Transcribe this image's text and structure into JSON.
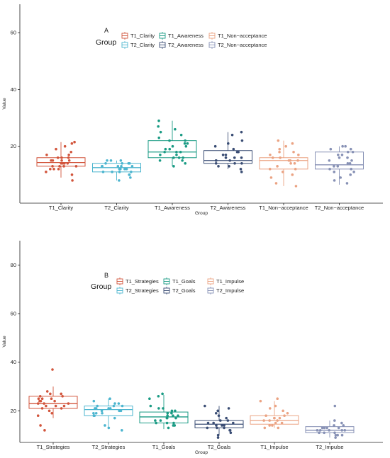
{
  "colors": {
    "T1_Clarity": "#d2553c",
    "T2_Clarity": "#4cb5cf",
    "T1_Awareness": "#1a9b84",
    "T2_Awareness": "#3a4d74",
    "T1_Non-acceptance": "#eba383",
    "T2_Non-acceptance": "#8791b5",
    "T1_Strategies": "#d2553c",
    "T2_Strategies": "#4cb5cf",
    "T1_Goals": "#1a9b84",
    "T2_Goals": "#3a4d74",
    "T1_Impulse": "#eba383",
    "T2_Impulse": "#8791b5"
  },
  "chart_data": [
    {
      "type": "box",
      "panel_label": "A",
      "xlabel": "Group",
      "ylabel": "Value",
      "ylim": [
        0,
        70
      ],
      "yticks": [
        20,
        40,
        60
      ],
      "grid": false,
      "legend": {
        "title": "Group",
        "placement": "top-left-inside",
        "entries": [
          "T1_Clarity",
          "T1_Awareness",
          "T1_Non−acceptance",
          "T2_Clarity",
          "T2_Awareness",
          "T2_Non−acceptance"
        ]
      },
      "categories": [
        "T1_Clarity",
        "T2_Clarity",
        "T1_Awareness",
        "T2_Awareness",
        "T1_Non−acceptance",
        "T2_Non−acceptance"
      ],
      "color_keys": [
        "T1_Clarity",
        "T2_Clarity",
        "T1_Awareness",
        "T2_Awareness",
        "T1_Non-acceptance",
        "T2_Non-acceptance"
      ],
      "boxes": [
        {
          "whisker_low": 9,
          "q1": 13,
          "median": 14.3,
          "q3": 16,
          "whisker_high": 21.5
        },
        {
          "whisker_low": 8,
          "q1": 11,
          "median": 12.5,
          "q3": 14,
          "whisker_high": 15
        },
        {
          "whisker_low": 13,
          "q1": 16,
          "median": 18,
          "q3": 22,
          "whisker_high": 29
        },
        {
          "whisker_low": 12,
          "q1": 14,
          "median": 15,
          "q3": 18.5,
          "whisker_high": 25
        },
        {
          "whisker_low": 6,
          "q1": 12,
          "median": 15,
          "q3": 16,
          "whisker_high": 22
        },
        {
          "whisker_low": 6.5,
          "q1": 12,
          "median": 13.5,
          "q3": 18,
          "whisker_high": 20
        }
      ],
      "points": [
        [
          15,
          16,
          14,
          13,
          12,
          18,
          17,
          14,
          15,
          16,
          11,
          13,
          14,
          16,
          21,
          19,
          12,
          15,
          13,
          14,
          8,
          10,
          17,
          20,
          21.5,
          13,
          15,
          12
        ],
        [
          12,
          13,
          11,
          14,
          15,
          10,
          13,
          12,
          11,
          14,
          9,
          8,
          13,
          15,
          12,
          11,
          14,
          13,
          12,
          10,
          15,
          14,
          13,
          11
        ],
        [
          18,
          20,
          22,
          16,
          15,
          19,
          21,
          17,
          14,
          23,
          25,
          29,
          27,
          18,
          16,
          13,
          19,
          22,
          20,
          17,
          15,
          18,
          21,
          24,
          16,
          26
        ],
        [
          15,
          16,
          14,
          13,
          17,
          18,
          19,
          20,
          22,
          25,
          24,
          14,
          13,
          15,
          16,
          12,
          11,
          17,
          18,
          14,
          15,
          21,
          16
        ],
        [
          15,
          16,
          14,
          13,
          12,
          18,
          17,
          20,
          22,
          21,
          19,
          10,
          9,
          6,
          7,
          16,
          15,
          14,
          12,
          11,
          17,
          18,
          15
        ],
        [
          13,
          14,
          12,
          11,
          18,
          19,
          20,
          17,
          16,
          15,
          10,
          9,
          7,
          8,
          14,
          13,
          12,
          17,
          18,
          16,
          15,
          11,
          19,
          20
        ]
      ]
    },
    {
      "type": "box",
      "panel_label": "B",
      "xlabel": "Group",
      "ylabel": "Value",
      "ylim": [
        7,
        90
      ],
      "yticks": [
        20,
        40,
        60,
        80
      ],
      "grid": false,
      "legend": {
        "title": "Group",
        "placement": "top-left-inside",
        "entries": [
          "T1_Strategies",
          "T1_Goals",
          "T1_Impulse",
          "T2_Strategies",
          "T2_Goals",
          "T2_Impulse"
        ]
      },
      "categories": [
        "T1_Strategies",
        "T2_Strategies",
        "T1_Goals",
        "T2_Goals",
        "T1_Impulse",
        "T2_Impulse"
      ],
      "color_keys": [
        "T1_Strategies",
        "T2_Strategies",
        "T1_Goals",
        "T2_Goals",
        "T1_Impulse",
        "T2_Impulse"
      ],
      "boxes": [
        {
          "whisker_low": 17,
          "q1": 21,
          "median": 23,
          "q3": 26,
          "whisker_high": 30
        },
        {
          "whisker_low": 12.5,
          "q1": 18,
          "median": 20.5,
          "q3": 22,
          "whisker_high": 25
        },
        {
          "whisker_low": 12.5,
          "q1": 15,
          "median": 17.5,
          "q3": 19.5,
          "whisker_high": 26.5
        },
        {
          "whisker_low": 10,
          "q1": 13,
          "median": 14.5,
          "q3": 16,
          "whisker_high": 22
        },
        {
          "whisker_low": 13,
          "q1": 14.5,
          "median": 16,
          "q3": 18,
          "whisker_high": 24
        },
        {
          "whisker_low": 9,
          "q1": 11,
          "median": 12,
          "q3": 13.5,
          "whisker_high": 16
        }
      ],
      "points": [
        [
          22,
          23,
          24,
          25,
          26,
          27,
          28,
          21,
          20,
          19,
          18,
          23,
          24,
          22,
          21,
          25,
          26,
          27,
          37,
          12,
          14,
          24,
          23,
          22,
          25
        ],
        [
          20,
          21,
          22,
          19,
          18,
          17,
          23,
          24,
          25,
          20,
          21,
          19,
          14,
          13,
          12,
          22,
          21,
          20,
          19,
          18,
          23,
          22,
          21
        ],
        [
          17,
          18,
          19,
          16,
          15,
          14,
          20,
          21,
          22,
          25,
          26,
          27,
          13,
          14,
          15,
          18,
          17,
          16,
          19,
          20,
          21,
          18,
          17,
          15
        ],
        [
          14,
          15,
          16,
          13,
          12,
          11,
          10,
          9,
          17,
          18,
          19,
          20,
          22,
          21,
          14,
          15,
          13,
          16,
          12,
          15,
          14,
          13
        ],
        [
          16,
          17,
          18,
          15,
          14,
          13,
          19,
          20,
          21,
          22,
          24,
          25,
          16,
          15,
          17,
          18,
          14,
          13,
          16,
          17
        ],
        [
          12,
          13,
          11,
          10,
          14,
          15,
          12,
          13,
          11,
          10,
          9,
          16,
          22,
          12,
          13,
          14,
          11,
          12,
          10,
          13,
          12
        ]
      ]
    }
  ]
}
